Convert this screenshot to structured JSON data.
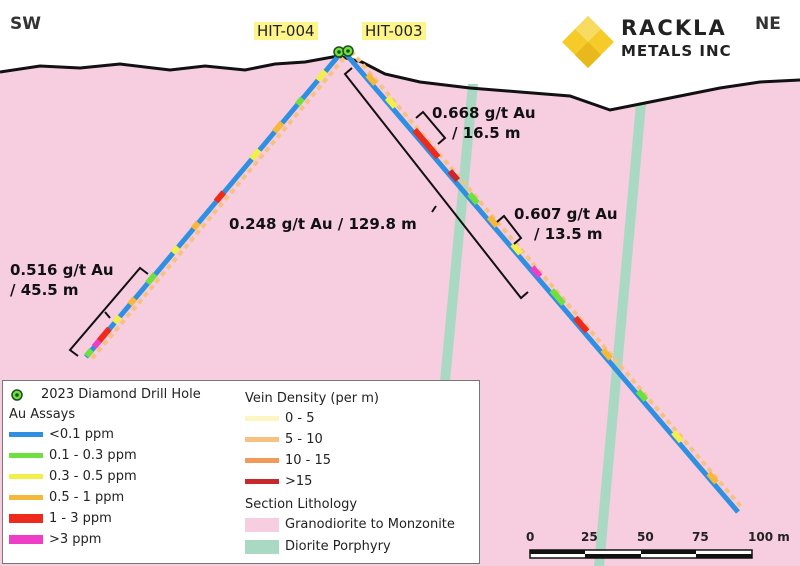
{
  "orientation": {
    "left": "SW",
    "right": "NE"
  },
  "drill_holes": {
    "left_label": "HIT-004",
    "right_label": "HIT-003"
  },
  "logo": {
    "name": "RACKLA",
    "subtitle": "METALS INC",
    "color": "#f5cb2a"
  },
  "intercepts": {
    "hit004": {
      "line1": "0.516 g/t Au",
      "line2": "/ 45.5 m"
    },
    "hit003_main": {
      "line1": "0.248 g/t Au / 129.8 m"
    },
    "hit003_upper": {
      "line1": "0.668 g/t Au",
      "line2": "/ 16.5 m"
    },
    "hit003_lower": {
      "line1": "0.607 g/t Au",
      "line2": "/ 13.5 m"
    }
  },
  "legend": {
    "drill_hole_label": "2023 Diamond Drill Hole",
    "assays_title": "Au Assays",
    "assays": [
      {
        "label": "<0.1 ppm",
        "color": "#2f8fe0",
        "style": "line"
      },
      {
        "label": "0.1 - 0.3 ppm",
        "color": "#6fe040",
        "style": "line"
      },
      {
        "label": "0.3 - 0.5 ppm",
        "color": "#f2ee4a",
        "style": "line"
      },
      {
        "label": "0.5 - 1 ppm",
        "color": "#f5b83a",
        "style": "line"
      },
      {
        "label": "1 - 3 ppm",
        "color": "#ee2a1c",
        "style": "block"
      },
      {
        "label": ">3 ppm",
        "color": "#ee3ec8",
        "style": "block"
      }
    ],
    "vein_title": "Vein Density (per m)",
    "vein": [
      {
        "label": "0 - 5",
        "color": "#fbf6c2"
      },
      {
        "label": "5 - 10",
        "color": "#f6c280"
      },
      {
        "label": "10 - 15",
        "color": "#ef9a58"
      },
      {
        "label": ">15",
        "color": "#c8282c"
      }
    ],
    "litho_title": "Section Lithology",
    "lithology": [
      {
        "label": "Granodiorite to Monzonite",
        "color": "#f7cde0"
      },
      {
        "label": "Diorite Porphyry",
        "color": "#a9d9c2"
      }
    ]
  },
  "scale": {
    "ticks": [
      "0",
      "25",
      "50",
      "75",
      "100 m"
    ]
  }
}
